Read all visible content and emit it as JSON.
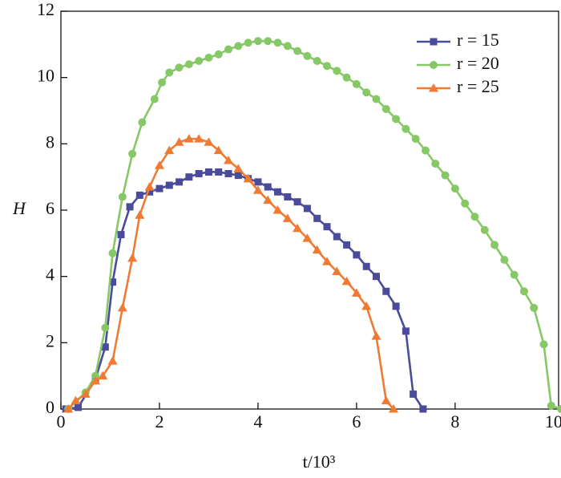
{
  "chart_data": {
    "type": "line",
    "x_label": "t/10³",
    "y_label": "H",
    "xlim": [
      0,
      10.1
    ],
    "ylim": [
      0,
      12
    ],
    "xticks": [
      0,
      2,
      4,
      6,
      8,
      10
    ],
    "yticks": [
      0,
      2,
      4,
      6,
      8,
      10,
      12
    ],
    "legend": "upper right",
    "series": [
      {
        "name": "r = 15",
        "color": "#4b4b9b",
        "marker": "square",
        "x": [
          0.1,
          0.35,
          0.7,
          0.9,
          1.05,
          1.22,
          1.4,
          1.6,
          1.8,
          2.0,
          2.2,
          2.4,
          2.6,
          2.8,
          3.0,
          3.2,
          3.4,
          3.6,
          3.8,
          4.0,
          4.2,
          4.4,
          4.6,
          4.8,
          5.0,
          5.2,
          5.4,
          5.6,
          5.8,
          6.0,
          6.2,
          6.4,
          6.6,
          6.8,
          7.0,
          7.15,
          7.35
        ],
        "values": [
          0,
          0.05,
          0.9,
          1.87,
          3.83,
          5.26,
          6.1,
          6.45,
          6.55,
          6.65,
          6.75,
          6.85,
          7.0,
          7.1,
          7.15,
          7.15,
          7.1,
          7.05,
          6.95,
          6.85,
          6.7,
          6.55,
          6.4,
          6.25,
          6.05,
          5.75,
          5.5,
          5.2,
          4.95,
          4.65,
          4.3,
          4.0,
          3.55,
          3.1,
          2.35,
          0.45,
          0
        ]
      },
      {
        "name": "r = 20",
        "color": "#86c766",
        "marker": "circle",
        "x": [
          0.15,
          0.5,
          0.7,
          0.9,
          1.05,
          1.25,
          1.45,
          1.65,
          1.9,
          2.05,
          2.2,
          2.4,
          2.6,
          2.8,
          3.0,
          3.2,
          3.4,
          3.6,
          3.8,
          4.0,
          4.2,
          4.4,
          4.6,
          4.8,
          5.0,
          5.2,
          5.4,
          5.6,
          5.8,
          6.0,
          6.2,
          6.4,
          6.6,
          6.8,
          7.0,
          7.2,
          7.4,
          7.6,
          7.8,
          8.0,
          8.2,
          8.4,
          8.6,
          8.8,
          9.0,
          9.2,
          9.4,
          9.6,
          9.8,
          9.95,
          10.15
        ],
        "values": [
          0,
          0.5,
          1.0,
          2.45,
          4.7,
          6.4,
          7.7,
          8.65,
          9.35,
          9.85,
          10.15,
          10.3,
          10.4,
          10.5,
          10.6,
          10.7,
          10.85,
          10.95,
          11.05,
          11.1,
          11.1,
          11.05,
          10.95,
          10.8,
          10.65,
          10.5,
          10.35,
          10.2,
          10.0,
          9.8,
          9.55,
          9.35,
          9.05,
          8.75,
          8.45,
          8.15,
          7.8,
          7.4,
          7.05,
          6.65,
          6.2,
          5.8,
          5.4,
          4.95,
          4.5,
          4.05,
          3.55,
          3.05,
          1.95,
          0.1,
          0
        ]
      },
      {
        "name": "r = 25",
        "color": "#ee7a33",
        "marker": "triangle",
        "x": [
          0.15,
          0.3,
          0.5,
          0.7,
          0.85,
          1.05,
          1.25,
          1.45,
          1.6,
          1.8,
          2.0,
          2.2,
          2.4,
          2.6,
          2.8,
          3.0,
          3.2,
          3.4,
          3.6,
          3.8,
          4.0,
          4.2,
          4.4,
          4.6,
          4.8,
          5.0,
          5.2,
          5.4,
          5.6,
          5.8,
          6.0,
          6.2,
          6.4,
          6.6,
          6.75
        ],
        "values": [
          0,
          0.25,
          0.45,
          0.85,
          1.0,
          1.45,
          3.05,
          4.55,
          5.85,
          6.7,
          7.35,
          7.8,
          8.05,
          8.15,
          8.15,
          8.05,
          7.8,
          7.5,
          7.25,
          6.95,
          6.6,
          6.3,
          6.0,
          5.75,
          5.45,
          5.15,
          4.8,
          4.45,
          4.15,
          3.85,
          3.5,
          3.1,
          2.2,
          0.25,
          0
        ]
      }
    ]
  }
}
